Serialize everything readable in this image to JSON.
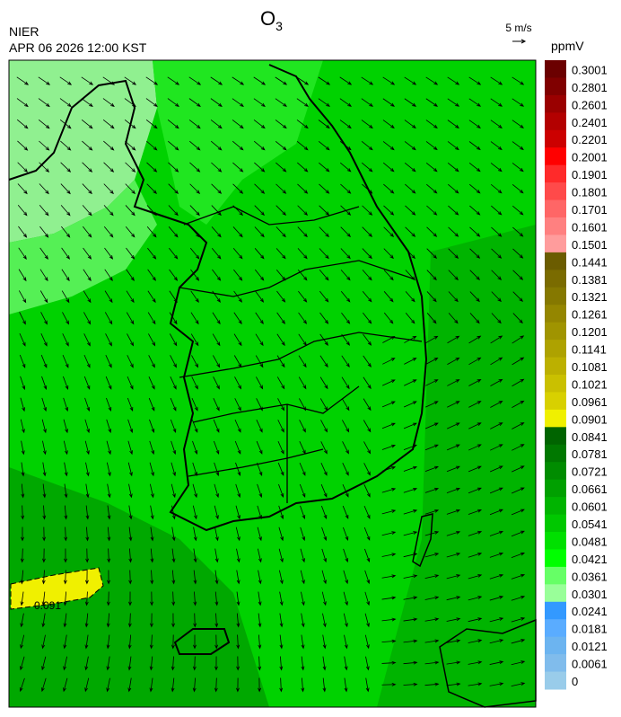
{
  "header": {
    "title": {
      "main": "O",
      "subscript": "3"
    },
    "agency": "NIER",
    "datetime": "APR 06 2026 12:00 KST",
    "wind_reference": "5 m/s"
  },
  "map": {
    "contour_label": "0.091"
  },
  "colorbar": {
    "unit": "ppmV",
    "levels": [
      0.3001,
      0.2801,
      0.2601,
      0.2401,
      0.2201,
      0.2001,
      0.1901,
      0.1801,
      0.1701,
      0.1601,
      0.1501,
      0.1441,
      0.1381,
      0.1321,
      0.1261,
      0.1201,
      0.1141,
      0.1081,
      0.1021,
      0.0961,
      0.0901,
      0.0841,
      0.0781,
      0.0721,
      0.0661,
      0.0601,
      0.0541,
      0.0481,
      0.0421,
      0.0361,
      0.0301,
      0.0241,
      0.0181,
      0.0121,
      0.0061,
      0
    ],
    "colors": [
      "#6b0000",
      "#800000",
      "#9a0000",
      "#b30000",
      "#cc0000",
      "#ff0000",
      "#ff2a2a",
      "#ff4a4a",
      "#ff6666",
      "#ff8080",
      "#ff9c9c",
      "#6b5c00",
      "#7a6b00",
      "#857800",
      "#948600",
      "#a09400",
      "#aea200",
      "#bcb000",
      "#cac000",
      "#d8d000",
      "#f0f000",
      "#006400",
      "#007800",
      "#008c00",
      "#00a000",
      "#00b400",
      "#00c800",
      "#00e000",
      "#00ff00",
      "#66ff66",
      "#99ff99",
      "#3399ff",
      "#5aacff",
      "#6cb4f0",
      "#80bcec",
      "#99ccea"
    ]
  }
}
